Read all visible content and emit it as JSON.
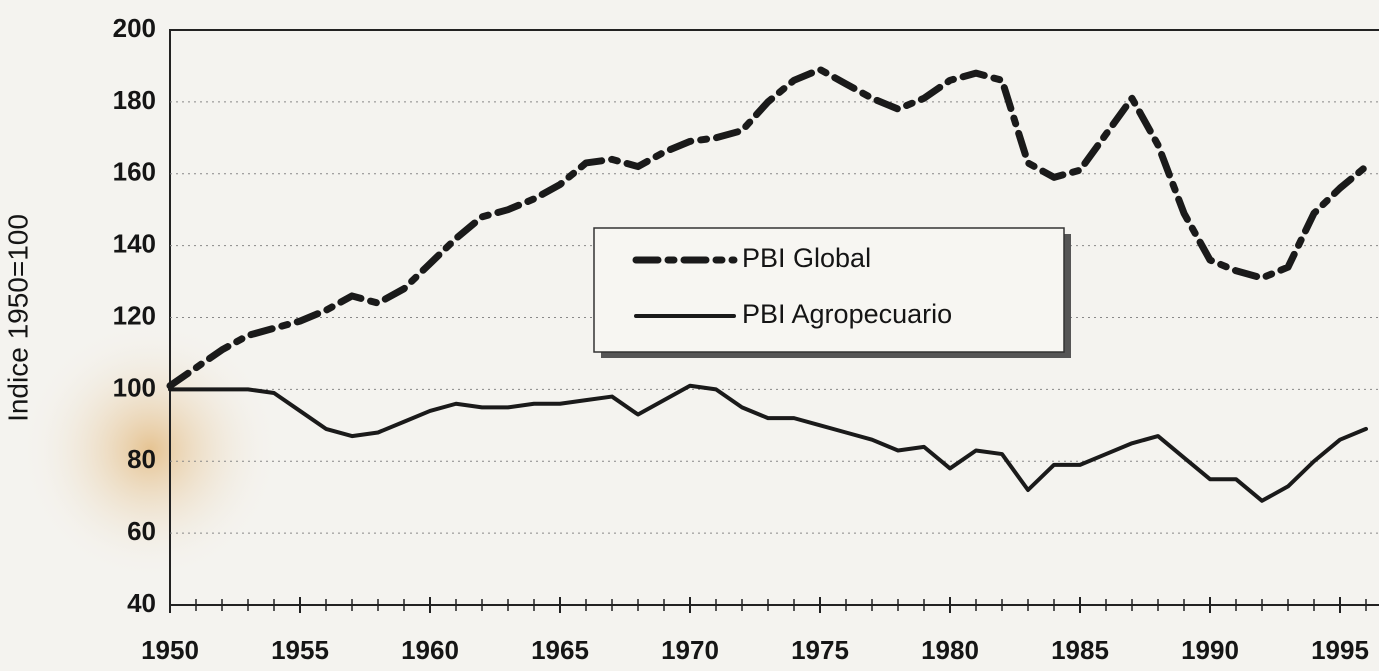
{
  "chart_data": {
    "type": "line",
    "y_label": "Indice 1950=100",
    "x": [
      1950,
      1951,
      1952,
      1953,
      1954,
      1955,
      1956,
      1957,
      1958,
      1959,
      1960,
      1961,
      1962,
      1963,
      1964,
      1965,
      1966,
      1967,
      1968,
      1969,
      1970,
      1971,
      1972,
      1973,
      1974,
      1975,
      1976,
      1977,
      1978,
      1979,
      1980,
      1981,
      1982,
      1983,
      1984,
      1985,
      1986,
      1987,
      1988,
      1989,
      1990,
      1991,
      1992,
      1993,
      1994,
      1995,
      1996
    ],
    "series": [
      {
        "name": "PBI Global",
        "color": "#1a1a1a",
        "style": "dashdot",
        "values": [
          101,
          106,
          111,
          115,
          117,
          119,
          122,
          126,
          124,
          128,
          135,
          142,
          148,
          150,
          153,
          157,
          163,
          164,
          162,
          166,
          169,
          170,
          172,
          180,
          186,
          189,
          185,
          181,
          178,
          181,
          186,
          188,
          186,
          163,
          159,
          161,
          171,
          181,
          168,
          149,
          136,
          133,
          131,
          134,
          149,
          156,
          162
        ]
      },
      {
        "name": "PBI Agropecuario",
        "color": "#1a1a1a",
        "style": "solid",
        "values": [
          100,
          100,
          100,
          100,
          99,
          94,
          89,
          87,
          88,
          91,
          94,
          96,
          95,
          95,
          96,
          96,
          97,
          98,
          93,
          97,
          101,
          100,
          95,
          92,
          92,
          90,
          88,
          86,
          83,
          84,
          78,
          83,
          82,
          72,
          79,
          79,
          82,
          85,
          87,
          81,
          75,
          75,
          69,
          73,
          80,
          86,
          89
        ]
      }
    ],
    "xlim": [
      1950,
      1996
    ],
    "xticks": [
      1950,
      1955,
      1960,
      1965,
      1970,
      1975,
      1980,
      1985,
      1990,
      1995
    ],
    "ylim": [
      40,
      200
    ],
    "yticks": [
      40,
      60,
      80,
      100,
      120,
      140,
      160,
      180,
      200
    ],
    "grid": true
  }
}
